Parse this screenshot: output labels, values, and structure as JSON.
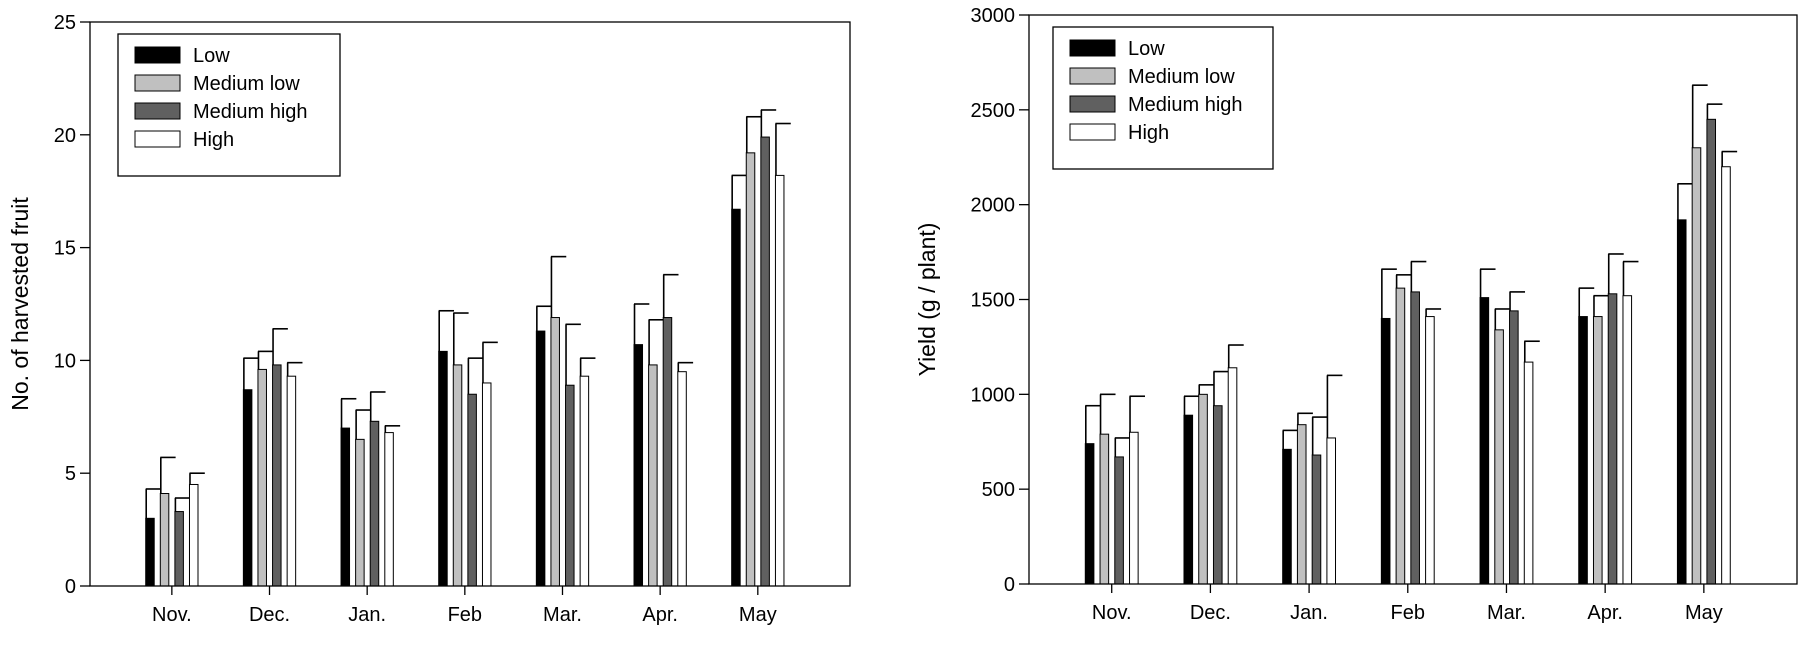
{
  "palette": {
    "low": "#000000",
    "medium_low": "#c0c0c0",
    "medium_high": "#606060",
    "high": "#ffffff"
  },
  "chart_data": [
    {
      "type": "bar",
      "title": "",
      "xlabel": "",
      "ylabel": "No. of harvested fruit",
      "ylim": [
        0,
        25
      ],
      "yticks": [
        0,
        5,
        10,
        15,
        20,
        25
      ],
      "grid": false,
      "legend_position": "top-left",
      "categories": [
        "Nov.",
        "Dec.",
        "Jan.",
        "Feb",
        "Mar.",
        "Apr.",
        "May"
      ],
      "series": [
        {
          "name": "Low",
          "color": "#000000",
          "values": [
            3.0,
            8.7,
            7.0,
            10.4,
            11.3,
            10.7,
            16.7
          ],
          "errors": [
            1.3,
            1.4,
            1.3,
            1.8,
            1.1,
            1.8,
            1.5
          ]
        },
        {
          "name": "Medium low",
          "color": "#c0c0c0",
          "values": [
            4.1,
            9.6,
            6.5,
            9.8,
            11.9,
            9.8,
            19.2
          ],
          "errors": [
            1.6,
            0.8,
            1.3,
            2.3,
            2.7,
            2.0,
            1.6
          ]
        },
        {
          "name": "Medium high",
          "color": "#606060",
          "values": [
            3.3,
            9.8,
            7.3,
            8.5,
            8.9,
            11.9,
            19.9
          ],
          "errors": [
            0.6,
            1.6,
            1.3,
            1.6,
            2.7,
            1.9,
            1.2
          ]
        },
        {
          "name": "High",
          "color": "#ffffff",
          "values": [
            4.5,
            9.3,
            6.8,
            9.0,
            9.3,
            9.5,
            18.2
          ],
          "errors": [
            0.5,
            0.6,
            0.3,
            1.8,
            0.8,
            0.4,
            2.3
          ]
        }
      ]
    },
    {
      "type": "bar",
      "title": "",
      "xlabel": "",
      "ylabel": "Yield (g / plant)",
      "ylim": [
        0,
        3000
      ],
      "yticks": [
        0,
        500,
        1000,
        1500,
        2000,
        2500,
        3000
      ],
      "grid": false,
      "legend_position": "top-left",
      "categories": [
        "Nov.",
        "Dec.",
        "Jan.",
        "Feb",
        "Mar.",
        "Apr.",
        "May"
      ],
      "series": [
        {
          "name": "Low",
          "color": "#000000",
          "values": [
            740,
            890,
            710,
            1400,
            1510,
            1410,
            1920
          ],
          "errors": [
            200,
            100,
            100,
            260,
            150,
            150,
            190
          ]
        },
        {
          "name": "Medium low",
          "color": "#c0c0c0",
          "values": [
            790,
            1000,
            840,
            1560,
            1340,
            1410,
            2300
          ],
          "errors": [
            210,
            50,
            60,
            70,
            110,
            110,
            330
          ]
        },
        {
          "name": "Medium high",
          "color": "#606060",
          "values": [
            670,
            940,
            680,
            1540,
            1440,
            1530,
            2450
          ],
          "errors": [
            100,
            180,
            200,
            160,
            100,
            210,
            80
          ]
        },
        {
          "name": "High",
          "color": "#ffffff",
          "values": [
            800,
            1140,
            770,
            1410,
            1170,
            1520,
            2200
          ],
          "errors": [
            190,
            120,
            330,
            40,
            110,
            180,
            80
          ]
        }
      ]
    }
  ]
}
